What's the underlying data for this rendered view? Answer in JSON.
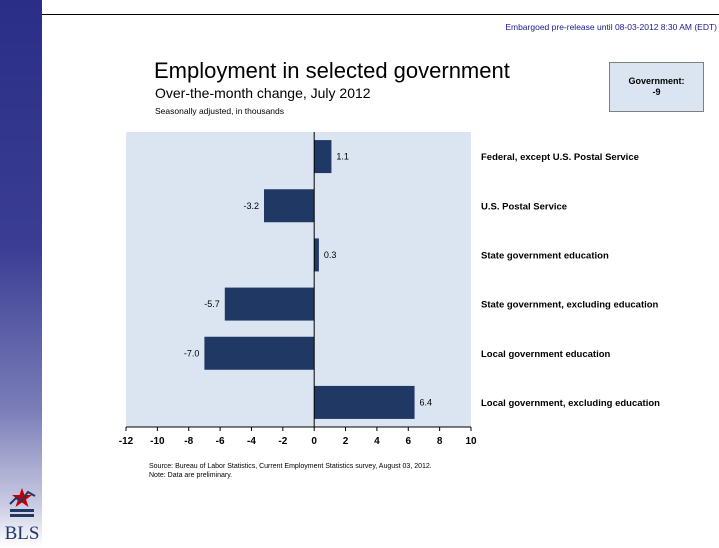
{
  "embargo": "Embargoed pre-release until 08-03-2012 8:30 AM (EDT)",
  "title": "Employment in selected government",
  "subtitle": "Over-the-month change, July 2012",
  "subnote": "Seasonally adjusted, in thousands",
  "summary_box": {
    "label": "Government:",
    "value": "-9"
  },
  "source_line": "Source: Bureau of Labor Statistics, Current Employment Statistics survey, August 03, 2012.",
  "note_line": "Note: Data are preliminary.",
  "logo_text": "BLS",
  "colors": {
    "bar": "#1f3864",
    "plot_bg": "#dbe5f1",
    "sidebar": "#2b2e86",
    "embargo": "#1a1a8c"
  },
  "chart_data": {
    "type": "bar",
    "orientation": "horizontal",
    "categories": [
      "Federal, except U.S. Postal Service",
      "U.S. Postal Service",
      "State government education",
      "State government, excluding education",
      "Local government education",
      "Local government, excluding education"
    ],
    "values": [
      1.1,
      -3.2,
      0.3,
      -5.7,
      -7.0,
      6.4
    ],
    "value_labels": [
      "1.1",
      "-3.2",
      "0.3",
      "-5.7",
      "-7.0",
      "6.4"
    ],
    "xlim": [
      -12,
      10
    ],
    "xticks": [
      "-12",
      "-10",
      "-8",
      "-6",
      "-4",
      "-2",
      "0",
      "2",
      "4",
      "6",
      "8",
      "10"
    ],
    "grid": false,
    "legend": "none"
  }
}
